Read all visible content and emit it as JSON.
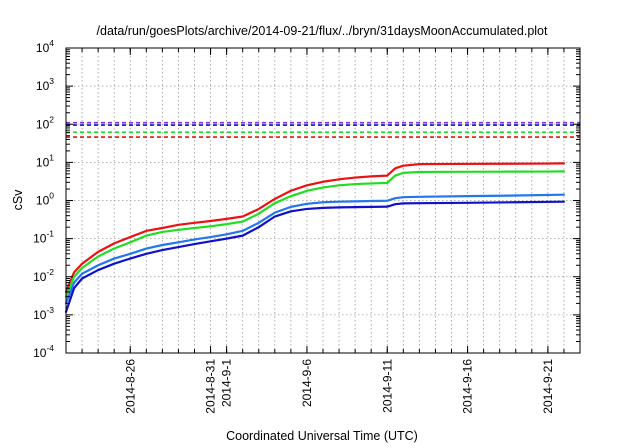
{
  "chart_data": {
    "type": "line",
    "title": "/data/run/goesPlots/archive/2014-09-21/flux/../bryn/31daysMoonAccumulated.plot",
    "xlabel": "Coordinated Universal Time (UTC)",
    "ylabel": "cSv",
    "yscale": "log",
    "ylim": [
      0.0001,
      10000
    ],
    "xlim": [
      "2014-08-22",
      "2014-09-23"
    ],
    "grid": true,
    "y_ticks": [
      {
        "base": "10",
        "exp": "-4",
        "value": 0.0001
      },
      {
        "base": "10",
        "exp": "-3",
        "value": 0.001
      },
      {
        "base": "10",
        "exp": "-2",
        "value": 0.01
      },
      {
        "base": "10",
        "exp": "-1",
        "value": 0.1
      },
      {
        "base": "10",
        "exp": "0",
        "value": 1
      },
      {
        "base": "10",
        "exp": "1",
        "value": 10
      },
      {
        "base": "10",
        "exp": "2",
        "value": 100
      },
      {
        "base": "10",
        "exp": "3",
        "value": 1000
      },
      {
        "base": "10",
        "exp": "4",
        "value": 10000
      }
    ],
    "x_ticks": [
      {
        "label": "2014-8-26",
        "date": "2014-08-26"
      },
      {
        "label": "2014-8-31",
        "date": "2014-08-31"
      },
      {
        "label": "2014-9-1",
        "date": "2014-09-01"
      },
      {
        "label": "2014-9-6",
        "date": "2014-09-06"
      },
      {
        "label": "2014-9-11",
        "date": "2014-09-11"
      },
      {
        "label": "2014-9-16",
        "date": "2014-09-16"
      },
      {
        "label": "2014-9-21",
        "date": "2014-09-21"
      }
    ],
    "reference_lines": [
      {
        "value": 110,
        "color": "#8a2be2"
      },
      {
        "value": 95,
        "color": "#1010cc"
      },
      {
        "value": 62,
        "color": "#22dd22"
      },
      {
        "value": 46,
        "color": "#ee1111"
      }
    ],
    "series": [
      {
        "color": "#ee1111",
        "points": [
          [
            "2014-08-22",
            0.004
          ],
          [
            "2014-08-22T12:00",
            0.013
          ],
          [
            "2014-08-23",
            0.022
          ],
          [
            "2014-08-24",
            0.045
          ],
          [
            "2014-08-25",
            0.075
          ],
          [
            "2014-08-26",
            0.11
          ],
          [
            "2014-08-27",
            0.16
          ],
          [
            "2014-08-28",
            0.19
          ],
          [
            "2014-08-29",
            0.23
          ],
          [
            "2014-08-30",
            0.26
          ],
          [
            "2014-08-31",
            0.29
          ],
          [
            "2014-09-01",
            0.33
          ],
          [
            "2014-09-02",
            0.38
          ],
          [
            "2014-09-03",
            0.6
          ],
          [
            "2014-09-04",
            1.1
          ],
          [
            "2014-09-05",
            1.8
          ],
          [
            "2014-09-06",
            2.5
          ],
          [
            "2014-09-07",
            3.1
          ],
          [
            "2014-09-08",
            3.6
          ],
          [
            "2014-09-09",
            4.0
          ],
          [
            "2014-09-10",
            4.3
          ],
          [
            "2014-09-11",
            4.5
          ],
          [
            "2014-09-11T12:00",
            7.0
          ],
          [
            "2014-09-12",
            8.2
          ],
          [
            "2014-09-13",
            9.0
          ],
          [
            "2014-09-15",
            9.1
          ],
          [
            "2014-09-18",
            9.2
          ],
          [
            "2014-09-21",
            9.3
          ],
          [
            "2014-09-22",
            9.4
          ]
        ]
      },
      {
        "color": "#22dd22",
        "points": [
          [
            "2014-08-22",
            0.003
          ],
          [
            "2014-08-22T12:00",
            0.01
          ],
          [
            "2014-08-23",
            0.017
          ],
          [
            "2014-08-24",
            0.034
          ],
          [
            "2014-08-25",
            0.055
          ],
          [
            "2014-08-26",
            0.08
          ],
          [
            "2014-08-27",
            0.12
          ],
          [
            "2014-08-28",
            0.15
          ],
          [
            "2014-08-29",
            0.17
          ],
          [
            "2014-08-30",
            0.19
          ],
          [
            "2014-08-31",
            0.21
          ],
          [
            "2014-09-01",
            0.24
          ],
          [
            "2014-09-02",
            0.28
          ],
          [
            "2014-09-03",
            0.45
          ],
          [
            "2014-09-04",
            0.85
          ],
          [
            "2014-09-05",
            1.3
          ],
          [
            "2014-09-06",
            1.8
          ],
          [
            "2014-09-07",
            2.2
          ],
          [
            "2014-09-08",
            2.5
          ],
          [
            "2014-09-09",
            2.7
          ],
          [
            "2014-09-10",
            2.8
          ],
          [
            "2014-09-11",
            2.9
          ],
          [
            "2014-09-11T12:00",
            4.5
          ],
          [
            "2014-09-12",
            5.3
          ],
          [
            "2014-09-13",
            5.6
          ],
          [
            "2014-09-15",
            5.65
          ],
          [
            "2014-09-18",
            5.7
          ],
          [
            "2014-09-21",
            5.75
          ],
          [
            "2014-09-22",
            5.8
          ]
        ]
      },
      {
        "color": "#2277ee",
        "points": [
          [
            "2014-08-22",
            0.002
          ],
          [
            "2014-08-22T12:00",
            0.007
          ],
          [
            "2014-08-23",
            0.012
          ],
          [
            "2014-08-24",
            0.02
          ],
          [
            "2014-08-25",
            0.03
          ],
          [
            "2014-08-26",
            0.04
          ],
          [
            "2014-08-27",
            0.055
          ],
          [
            "2014-08-28",
            0.068
          ],
          [
            "2014-08-29",
            0.08
          ],
          [
            "2014-08-30",
            0.095
          ],
          [
            "2014-08-31",
            0.11
          ],
          [
            "2014-09-01",
            0.13
          ],
          [
            "2014-09-02",
            0.16
          ],
          [
            "2014-09-03",
            0.26
          ],
          [
            "2014-09-04",
            0.48
          ],
          [
            "2014-09-05",
            0.68
          ],
          [
            "2014-09-06",
            0.82
          ],
          [
            "2014-09-07",
            0.9
          ],
          [
            "2014-09-08",
            0.93
          ],
          [
            "2014-09-09",
            0.95
          ],
          [
            "2014-09-10",
            0.97
          ],
          [
            "2014-09-11",
            0.98
          ],
          [
            "2014-09-11T12:00",
            1.15
          ],
          [
            "2014-09-12",
            1.22
          ],
          [
            "2014-09-13",
            1.25
          ],
          [
            "2014-09-16",
            1.3
          ],
          [
            "2014-09-19",
            1.35
          ],
          [
            "2014-09-22",
            1.42
          ]
        ]
      },
      {
        "color": "#1111cc",
        "points": [
          [
            "2014-08-22",
            0.0012
          ],
          [
            "2014-08-22T12:00",
            0.005
          ],
          [
            "2014-08-23",
            0.009
          ],
          [
            "2014-08-24",
            0.015
          ],
          [
            "2014-08-25",
            0.022
          ],
          [
            "2014-08-26",
            0.03
          ],
          [
            "2014-08-27",
            0.04
          ],
          [
            "2014-08-28",
            0.05
          ],
          [
            "2014-08-29",
            0.06
          ],
          [
            "2014-08-30",
            0.072
          ],
          [
            "2014-08-31",
            0.085
          ],
          [
            "2014-09-01",
            0.1
          ],
          [
            "2014-09-02",
            0.12
          ],
          [
            "2014-09-03",
            0.2
          ],
          [
            "2014-09-04",
            0.38
          ],
          [
            "2014-09-05",
            0.52
          ],
          [
            "2014-09-06",
            0.6
          ],
          [
            "2014-09-07",
            0.64
          ],
          [
            "2014-09-08",
            0.66
          ],
          [
            "2014-09-09",
            0.67
          ],
          [
            "2014-09-10",
            0.68
          ],
          [
            "2014-09-11",
            0.69
          ],
          [
            "2014-09-11T12:00",
            0.8
          ],
          [
            "2014-09-12",
            0.84
          ],
          [
            "2014-09-13",
            0.85
          ],
          [
            "2014-09-16",
            0.87
          ],
          [
            "2014-09-19",
            0.9
          ],
          [
            "2014-09-22",
            0.93
          ]
        ]
      }
    ]
  }
}
